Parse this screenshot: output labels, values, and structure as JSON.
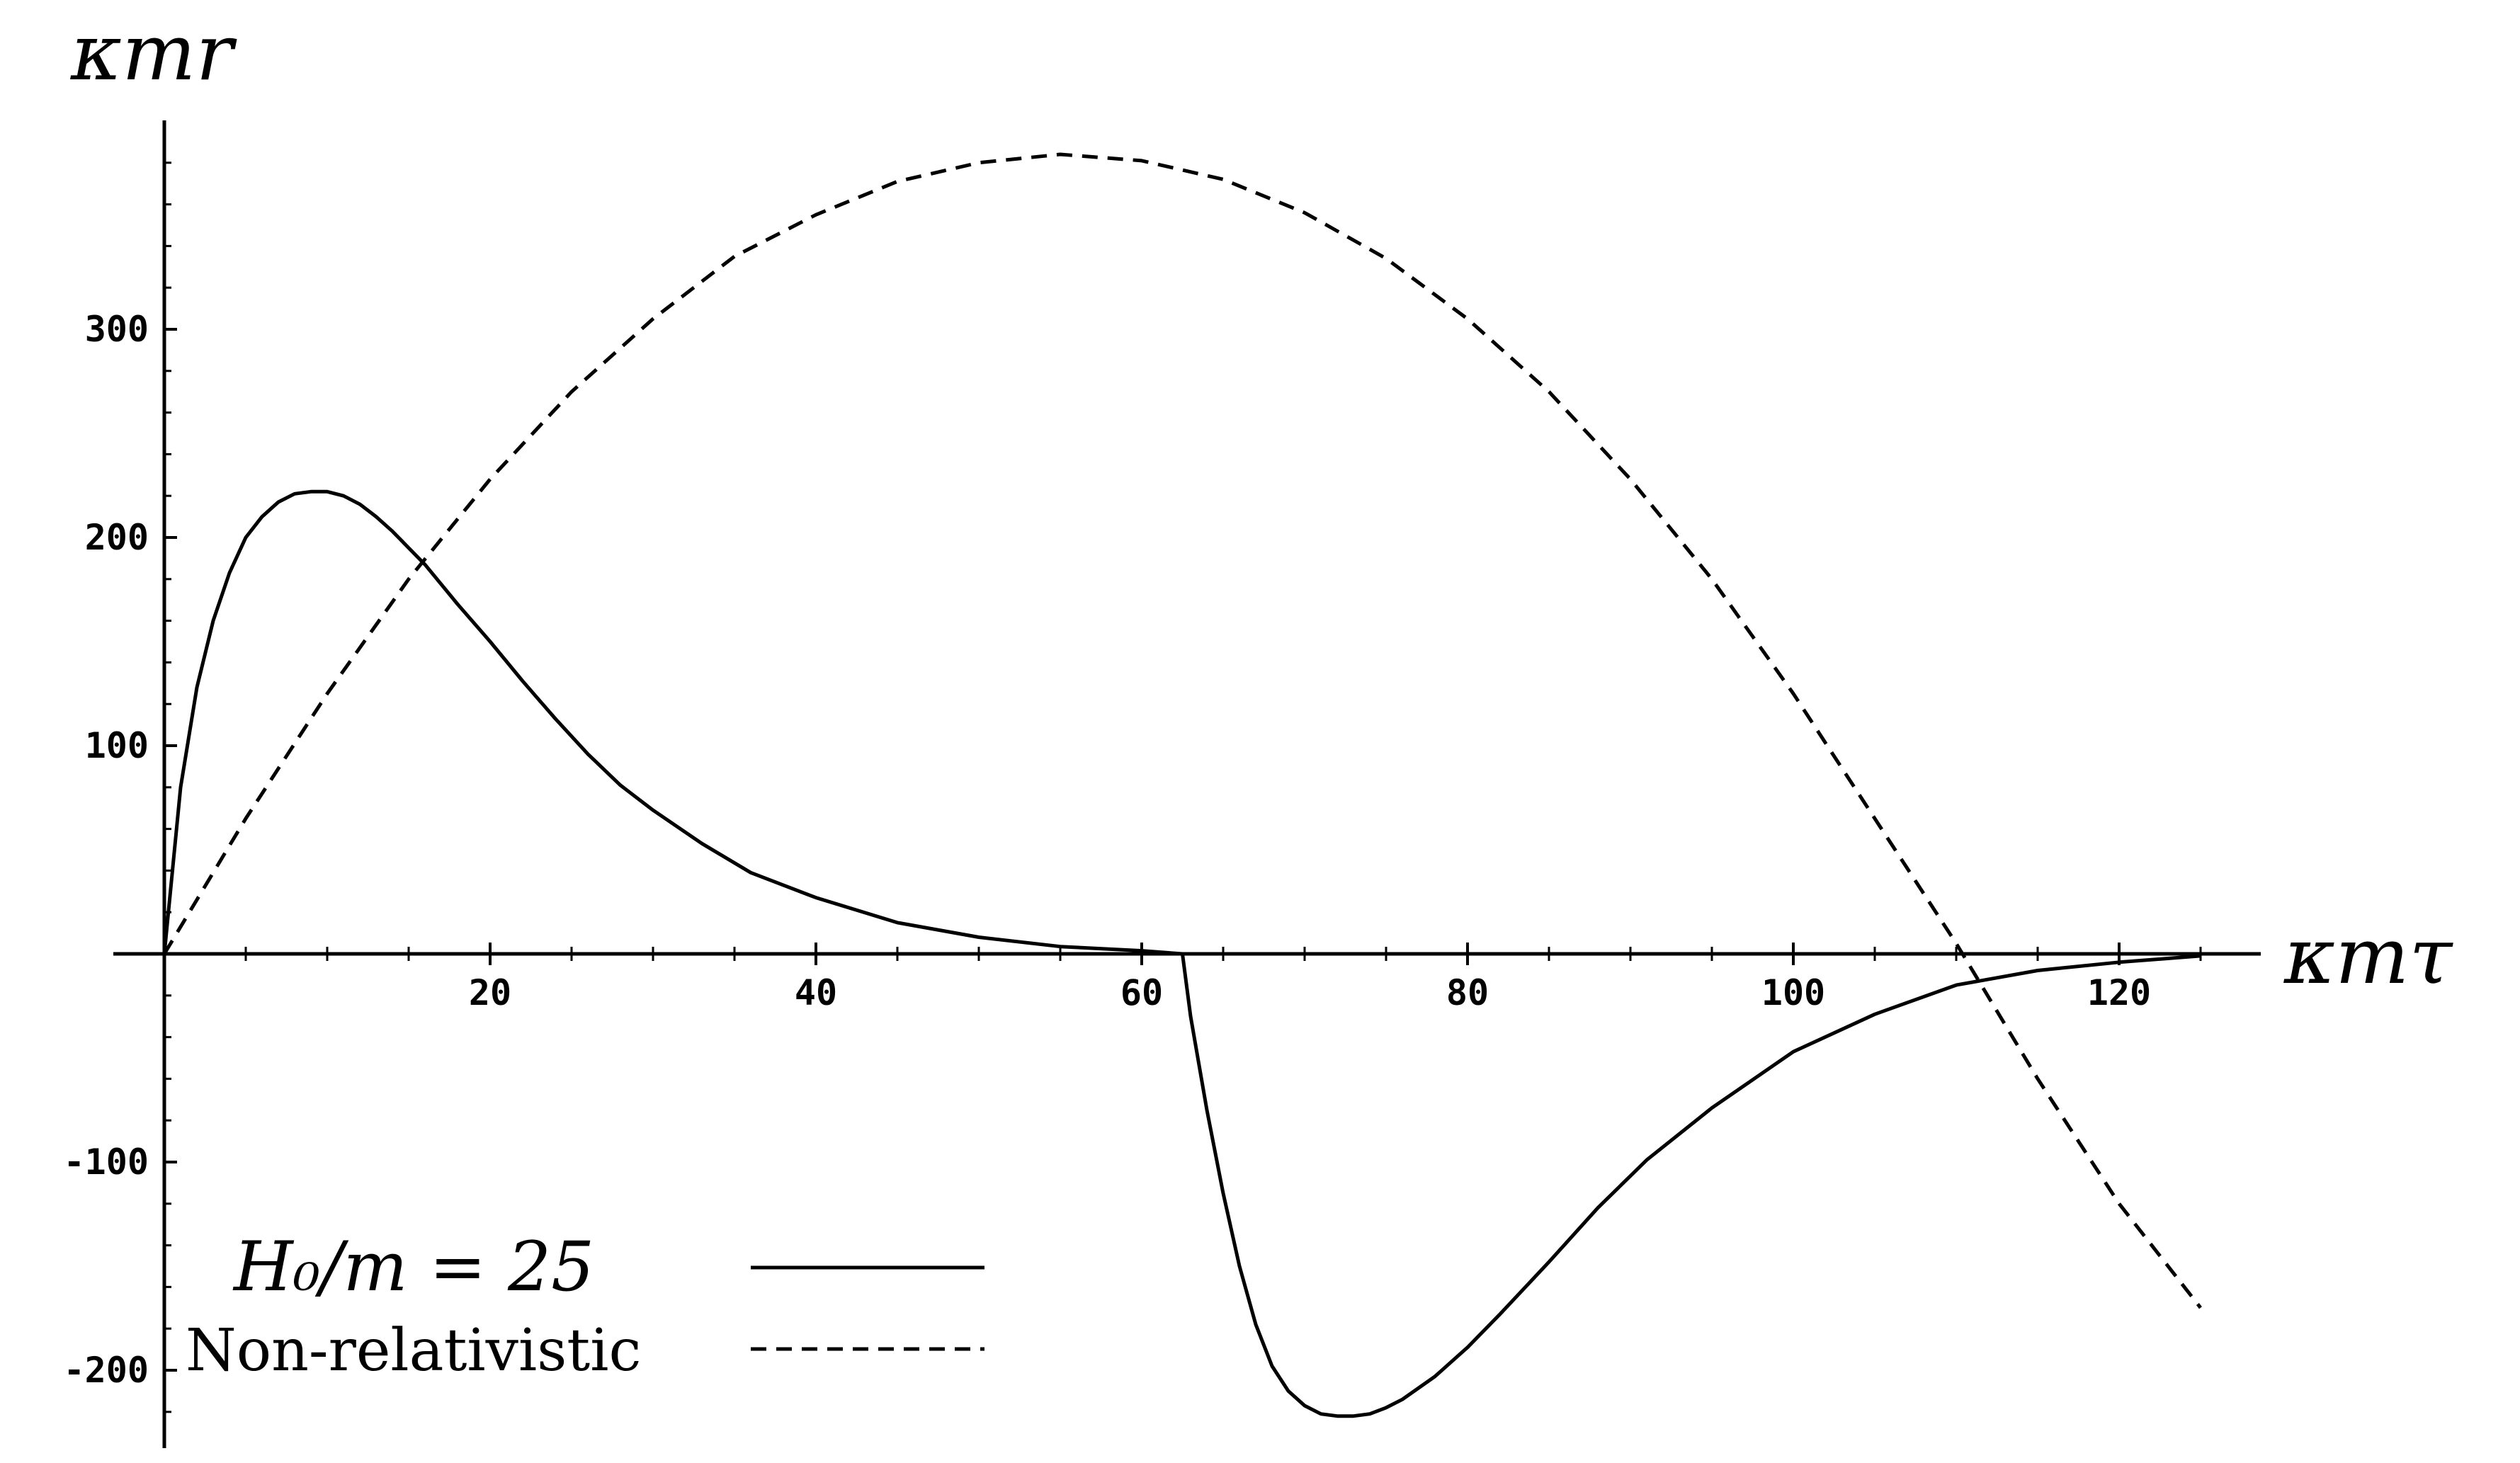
{
  "chart_data": {
    "type": "line",
    "xlabel": "κmτ",
    "ylabel": "κmr",
    "xlim": [
      0,
      127
    ],
    "ylim": [
      -235,
      395
    ],
    "x_ticks": [
      20,
      40,
      60,
      80,
      100,
      120
    ],
    "y_ticks": [
      -200,
      -100,
      100,
      200,
      300
    ],
    "grid": false,
    "legend_position": "bottom-left",
    "series": [
      {
        "name": "H₀/m = 25",
        "style": "solid",
        "color": "#000000",
        "x": [
          0,
          1,
          2,
          3,
          4,
          5,
          6,
          7,
          8,
          9,
          10,
          11,
          12,
          13,
          14,
          15,
          16,
          18,
          20,
          22,
          24,
          26,
          28,
          30,
          33,
          36,
          40,
          45,
          50,
          55,
          60,
          62.5,
          63,
          64,
          65,
          66,
          67,
          68,
          69,
          70,
          71,
          72,
          73,
          74,
          75,
          76,
          78,
          80,
          82,
          85,
          88,
          91,
          95,
          100,
          105,
          110,
          115,
          120,
          125
        ],
        "y": [
          0,
          80,
          128,
          160,
          183,
          200,
          210,
          217,
          221,
          222,
          222,
          220,
          216,
          210,
          203,
          195,
          187,
          168,
          150,
          131,
          113,
          96,
          81,
          69,
          53,
          39,
          27,
          15,
          8,
          3.5,
          1.5,
          0,
          -30,
          -75,
          -115,
          -150,
          -178,
          -198,
          -210,
          -217,
          -221,
          -222,
          -222,
          -221,
          -218,
          -214,
          -203,
          -189,
          -173,
          -148,
          -122,
          -99,
          -74,
          -47,
          -29,
          -15,
          -8,
          -4,
          -1
        ]
      },
      {
        "name": "Non-relativistic",
        "style": "dashed",
        "color": "#000000",
        "x": [
          0,
          5,
          10,
          15,
          20,
          25,
          30,
          35,
          40,
          45,
          50,
          55,
          60,
          65,
          70,
          75,
          80,
          85,
          90,
          95,
          100,
          105,
          110,
          115,
          120,
          125
        ],
        "y": [
          0,
          65,
          125,
          180,
          228,
          270,
          305,
          335,
          355,
          371,
          380,
          384,
          381,
          372,
          356,
          334,
          305,
          270,
          228,
          180,
          125,
          65,
          5,
          -60,
          -120,
          -170
        ]
      }
    ],
    "legend": {
      "entries": [
        "H₀/m = 25",
        "Non-relativistic"
      ]
    }
  }
}
